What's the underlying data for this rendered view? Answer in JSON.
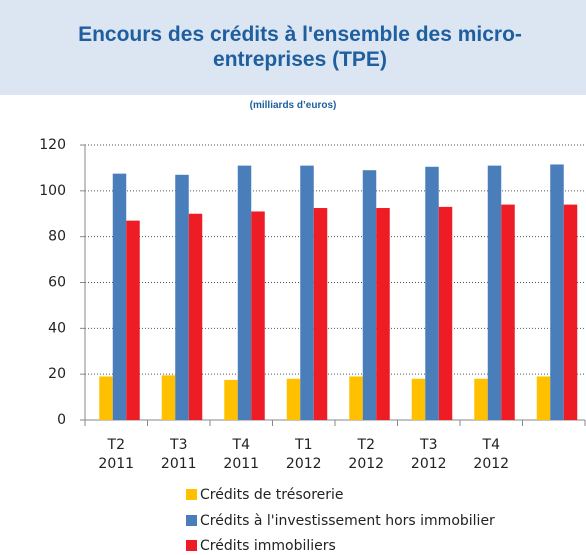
{
  "chart_data": {
    "type": "bar",
    "title": "Encours des crédits à l'ensemble des micro-entreprises (TPE)",
    "subtitle": "(milliards d’euros)",
    "categories": [
      "T2\n2011",
      "T3\n2011",
      "T4\n2011",
      "T1\n2012",
      "T2\n2012",
      "T3\n2012",
      "T4\n2012",
      null
    ],
    "series": [
      {
        "name": "Crédits de trésorerie",
        "color": "#ffc000",
        "values": [
          19,
          19.5,
          17.5,
          18,
          19,
          18,
          18,
          19
        ]
      },
      {
        "name": "Crédits à l'investissement hors immobilier",
        "color": "#4a7ebb",
        "values": [
          107.5,
          107,
          111,
          111,
          109,
          110.5,
          111,
          111.5
        ]
      },
      {
        "name": "Crédits immobiliers",
        "color": "#ee1c25",
        "values": [
          87,
          90,
          91,
          92.5,
          92.5,
          93,
          94,
          94
        ]
      }
    ],
    "ylim": [
      0,
      120
    ],
    "yticks": [
      0,
      20,
      40,
      60,
      80,
      100,
      120
    ],
    "grid": true
  }
}
